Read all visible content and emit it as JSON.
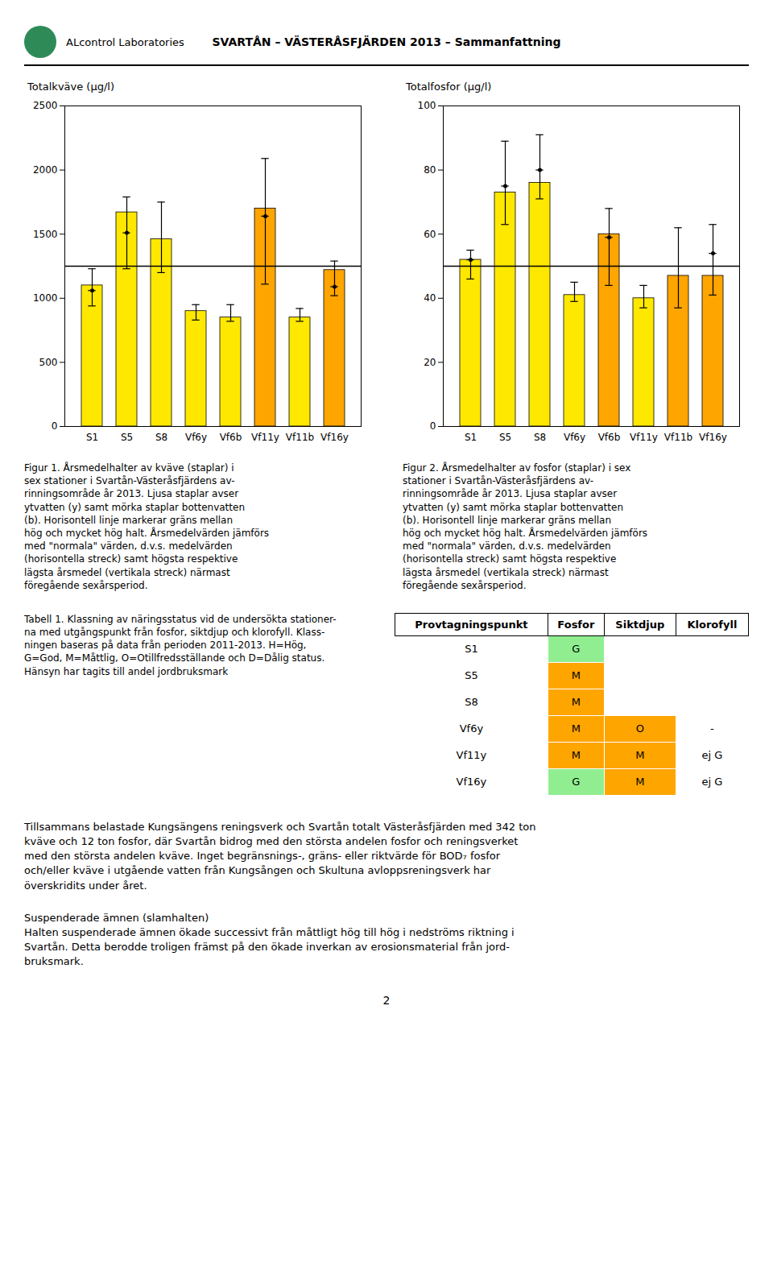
{
  "header_logo_text": "ALcontrol Laboratories",
  "header_logo_color": "#2E8B57",
  "header_title": "SVARTÅN – VÄSTERÅSFJÄRDEN 2013 – Sammanfattning",
  "chart_data": [
    {
      "type": "bar",
      "title": "Totalkväve (µg/l)",
      "categories": [
        "S1",
        "S5",
        "S8",
        "Vf6y",
        "Vf6b",
        "Vf11y",
        "Vf11b",
        "Vf16y"
      ],
      "values": [
        1100,
        1670,
        1460,
        900,
        850,
        1700,
        850,
        1220
      ],
      "colors": [
        "#FFE800",
        "#FFE800",
        "#FFE800",
        "#FFE800",
        "#FFE800",
        "#FFA500",
        "#FFE800",
        "#FFA500"
      ],
      "error_mean": [
        1060,
        1510,
        null,
        null,
        null,
        1640,
        null,
        1090
      ],
      "error_high": [
        1230,
        1790,
        1750,
        950,
        950,
        2090,
        920,
        1290
      ],
      "error_low": [
        940,
        1230,
        1200,
        830,
        820,
        1110,
        820,
        1020
      ],
      "threshold": 1250,
      "ylim": [
        0,
        2500
      ],
      "yticks": [
        0,
        500,
        1000,
        1500,
        2000,
        2500
      ]
    },
    {
      "type": "bar",
      "title": "Totalfosfor (µg/l)",
      "categories": [
        "S1",
        "S5",
        "S8",
        "Vf6y",
        "Vf6b",
        "Vf11y",
        "Vf11b",
        "Vf16y"
      ],
      "values": [
        52,
        73,
        76,
        41,
        60,
        40,
        47,
        47
      ],
      "colors": [
        "#FFE800",
        "#FFE800",
        "#FFE800",
        "#FFE800",
        "#FFA500",
        "#FFE800",
        "#FFA500",
        "#FFA500"
      ],
      "error_mean": [
        52,
        75,
        80,
        null,
        59,
        null,
        null,
        54
      ],
      "error_high": [
        55,
        89,
        91,
        45,
        68,
        44,
        62,
        63
      ],
      "error_low": [
        46,
        63,
        71,
        39,
        44,
        37,
        37,
        41
      ],
      "threshold": 50,
      "ylim": [
        0,
        100
      ],
      "yticks": [
        0,
        20,
        40,
        60,
        80,
        100
      ]
    }
  ],
  "captions": [
    "Figur 1. Årsmedelhalter av kväve (staplar) i\nsex stationer i Svartån-Västeråsfjärdens av-\nrinningsområde år 2013. Ljusa staplar avser\nytvatten (y) samt mörka staplar bottenvatten\n(b). Horisontell linje markerar gräns mellan\nhög och mycket hög halt. Årsmedelvärden jämförs\nmed \"normala\" värden, d.v.s. medelvärden\n(horisontella streck) samt högsta respektive\nlägsta årsmedel (vertikala streck) närmast\nföregående sexårsperiod.",
    "Figur 2. Årsmedelhalter av fosfor (staplar) i sex\nstationer i Svartån-Västeråsfjärdens av-\nrinningsområde år 2013. Ljusa staplar avser\nytvatten (y) samt mörka staplar bottenvatten\n(b). Horisontell linje markerar gräns mellan\nhög och mycket hög halt. Årsmedelvärden jämförs\nmed \"normala\" värden, d.v.s. medelvärden\n(horisontella streck) samt högsta respektive\nlägsta årsmedel (vertikala streck) närmast\nföregående sexårsperiod."
  ],
  "table": {
    "title": "Tabell 1. Klassning av näringsstatus vid de undersökta stationer-\nna med utgångspunkt från fosfor, siktdjup och klorofyll. Klass-\nningen baseras på data från perioden 2011-2013. H=Hög,\nG=God, M=Måttlig, O=Otillfredsställande och D=Dålig status.\nHänsyn har tagits till andel jordbruksmark",
    "headers": [
      "Provtagningspunkt",
      "Fosfor",
      "Siktdjup",
      "Klorofyll"
    ],
    "rows": [
      [
        "S1",
        "G",
        null,
        null
      ],
      [
        "S5",
        "M",
        null,
        null
      ],
      [
        "S8",
        "M",
        null,
        null
      ],
      [
        "Vf6y",
        "M",
        "O",
        "-"
      ],
      [
        "Vf11y",
        "M",
        "M",
        "ej G"
      ],
      [
        "Vf16y",
        "G",
        "M",
        "ej G"
      ]
    ],
    "cell_colors": [
      [
        "white",
        "#90EE90",
        "white",
        "white"
      ],
      [
        "white",
        "#FFA500",
        "white",
        "white"
      ],
      [
        "white",
        "#FFA500",
        "white",
        "white"
      ],
      [
        "white",
        "#FFA500",
        "#FFA500",
        "white"
      ],
      [
        "white",
        "#FFA500",
        "#FFA500",
        "white"
      ],
      [
        "white",
        "#90EE90",
        "#FFA500",
        "white"
      ]
    ]
  },
  "bottom_texts": [
    "Tillsammans belastade Kungsängens reningsverk och Svartån totalt Västeråsfjärden med 342 ton\nkväve och 12 ton fosfor, där Svartån bidrog med den största andelen fosfor och reningsverket\nmed den största andelen kväve. Inget begränsnings-, gräns- eller riktvärde för BOD₇ fosfor\noch/eller kväve i utgående vatten från Kungsången och Skultuna avloppsreningsverk har\növerskridits under året.",
    "Suspenderade ämnen (slamhalten)\nHalten suspenderade ämnen ökade successivt från måttligt hög till hög i nedströms riktning i\nSvartån. Detta berodde troligen främst på den ökade inverkan av erosionsmaterial från jord-\nbruksmark."
  ],
  "page_number": "2"
}
